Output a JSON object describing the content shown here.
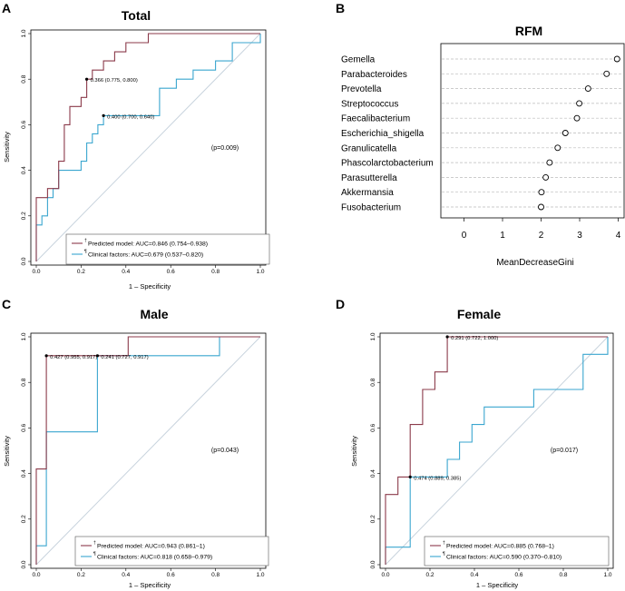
{
  "colors": {
    "predicted": "#8b3a4a",
    "clinical": "#3aa6cf",
    "diagonal": "#c8d3dd",
    "axis": "#000000",
    "grid_dash": "#bbbbbb",
    "legend_border": "#555555"
  },
  "chart_data": [
    {
      "panel": "A",
      "type": "line",
      "title": "Total",
      "xlabel": "1 – Specificity",
      "ylabel": "Sensitivity",
      "xlim": [
        0,
        1
      ],
      "ylim": [
        0,
        1
      ],
      "xticks": [
        "0.0",
        "0.2",
        "0.4",
        "0.6",
        "0.8",
        "1.0"
      ],
      "yticks": [
        "0.0",
        "0.2",
        "0.4",
        "0.6",
        "0.8",
        "1.0"
      ],
      "pvalue": "(p=0.009)",
      "series": [
        {
          "name": "Predicted model",
          "legend_mark": "†",
          "legend_text": "Predicted model: AUC=0.846 (0.754–0.938)",
          "color_key": "predicted",
          "x": [
            0,
            0,
            0.05,
            0.05,
            0.1,
            0.1,
            0.125,
            0.125,
            0.15,
            0.15,
            0.2,
            0.2,
            0.225,
            0.225,
            0.25,
            0.25,
            0.3,
            0.3,
            0.35,
            0.35,
            0.4,
            0.4,
            0.45,
            0.45,
            0.5,
            0.5,
            1.0
          ],
          "y": [
            0,
            0.28,
            0.28,
            0.32,
            0.32,
            0.44,
            0.44,
            0.6,
            0.6,
            0.68,
            0.68,
            0.72,
            0.72,
            0.8,
            0.8,
            0.84,
            0.84,
            0.88,
            0.88,
            0.92,
            0.92,
            0.96,
            0.96,
            0.96,
            0.96,
            1.0,
            1.0
          ],
          "cutoff": {
            "x": 0.225,
            "y": 0.8,
            "label": "0.366 (0.775, 0.800)"
          }
        },
        {
          "name": "Clinical factors",
          "legend_mark": "¶",
          "legend_text": "Clinical factors: AUC=0.679 (0.537–0.820)",
          "color_key": "clinical",
          "x": [
            0,
            0,
            0.025,
            0.025,
            0.05,
            0.05,
            0.075,
            0.075,
            0.1,
            0.1,
            0.2,
            0.2,
            0.225,
            0.225,
            0.25,
            0.25,
            0.275,
            0.275,
            0.3,
            0.3,
            0.55,
            0.55,
            0.625,
            0.625,
            0.7,
            0.7,
            0.8,
            0.8,
            0.875,
            0.875,
            0.95,
            0.95,
            1.0,
            1.0
          ],
          "y": [
            0,
            0.16,
            0.16,
            0.2,
            0.2,
            0.28,
            0.28,
            0.32,
            0.32,
            0.4,
            0.4,
            0.44,
            0.44,
            0.52,
            0.52,
            0.56,
            0.56,
            0.6,
            0.6,
            0.64,
            0.64,
            0.76,
            0.76,
            0.8,
            0.8,
            0.84,
            0.84,
            0.88,
            0.88,
            0.96,
            0.96,
            0.96,
            0.96,
            1.0
          ],
          "cutoff": {
            "x": 0.3,
            "y": 0.64,
            "label": "0.400 (0.700, 0.640)"
          }
        }
      ]
    },
    {
      "panel": "B",
      "type": "scatter",
      "title": "RFM",
      "xlabel": "MeanDecreaseGini",
      "xlim": [
        -0.6,
        4.2
      ],
      "xticks": [
        0,
        1,
        2,
        3,
        4
      ],
      "features": [
        "Gemella",
        "Parabacteroides",
        "Prevotella",
        "Streptococcus",
        "Faecalibacterium",
        "Escherichia_shigella",
        "Granulicatella",
        "Phascolarctobacterium",
        "Parasutterella",
        "Akkermansia",
        "Fusobacterium"
      ],
      "values": [
        3.97,
        3.7,
        3.22,
        2.99,
        2.93,
        2.63,
        2.43,
        2.22,
        2.12,
        2.01,
        2.0
      ]
    },
    {
      "panel": "C",
      "type": "line",
      "title": "Male",
      "xlabel": "1 – Specificity",
      "ylabel": "Sensitivity",
      "xlim": [
        0,
        1
      ],
      "ylim": [
        0,
        1
      ],
      "xticks": [
        "0.0",
        "0.2",
        "0.4",
        "0.6",
        "0.8",
        "1.0"
      ],
      "yticks": [
        "0.0",
        "0.2",
        "0.4",
        "0.6",
        "0.8",
        "1.0"
      ],
      "pvalue": "(p=0.043)",
      "series": [
        {
          "name": "Predicted model",
          "legend_mark": "†",
          "legend_text": "Predicted model: AUC=0.943 (0.861–1)",
          "color_key": "predicted",
          "x": [
            0,
            0,
            0.045,
            0.045,
            0.41,
            0.41,
            1.0
          ],
          "y": [
            0,
            0.42,
            0.42,
            0.917,
            0.917,
            1.0,
            1.0
          ],
          "cutoff": {
            "x": 0.045,
            "y": 0.917,
            "label": "0.427 (0.955, 0.917)"
          }
        },
        {
          "name": "Clinical factors",
          "legend_mark": "¶",
          "legend_text": "Clinical factors: AUC=0.818 (0.658–0.979)",
          "color_key": "clinical",
          "x": [
            0,
            0,
            0.045,
            0.045,
            0.273,
            0.273,
            0.818,
            0.818,
            1.0
          ],
          "y": [
            0,
            0.083,
            0.083,
            0.583,
            0.583,
            0.917,
            0.917,
            1.0,
            1.0
          ],
          "cutoff": {
            "x": 0.273,
            "y": 0.917,
            "label": "0.241 (0.727, 0.917)"
          }
        }
      ]
    },
    {
      "panel": "D",
      "type": "line",
      "title": "Female",
      "xlabel": "1 – Specificity",
      "ylabel": "Sensitivity",
      "xlim": [
        0,
        1
      ],
      "ylim": [
        0,
        1
      ],
      "xticks": [
        "0.0",
        "0.2",
        "0.4",
        "0.6",
        "0.8",
        "1.0"
      ],
      "yticks": [
        "0.0",
        "0.2",
        "0.4",
        "0.6",
        "0.8",
        "1.0"
      ],
      "pvalue": "(p=0.017)",
      "series": [
        {
          "name": "Predicted model",
          "legend_mark": "†",
          "legend_text": "Predicted model: AUC=0.885 (0.768–1)",
          "color_key": "predicted",
          "x": [
            0,
            0,
            0.056,
            0.056,
            0.111,
            0.111,
            0.167,
            0.167,
            0.222,
            0.222,
            0.278,
            0.278,
            1.0
          ],
          "y": [
            0,
            0.308,
            0.308,
            0.385,
            0.385,
            0.615,
            0.615,
            0.769,
            0.769,
            0.846,
            0.846,
            1.0,
            1.0
          ],
          "cutoff": {
            "x": 0.278,
            "y": 1.0,
            "label": "0.291 (0.722, 1.000)"
          }
        },
        {
          "name": "Clinical factors",
          "legend_mark": "¶",
          "legend_text": "Clinical factors: AUC=0.590 (0.370–0.810)",
          "color_key": "clinical",
          "x": [
            0,
            0,
            0.111,
            0.111,
            0.278,
            0.278,
            0.333,
            0.333,
            0.389,
            0.389,
            0.444,
            0.444,
            0.5,
            0.5,
            0.667,
            0.667,
            0.889,
            0.889,
            1.0,
            1.0
          ],
          "y": [
            0,
            0.077,
            0.077,
            0.385,
            0.385,
            0.462,
            0.462,
            0.538,
            0.538,
            0.615,
            0.615,
            0.692,
            0.692,
            0.692,
            0.692,
            0.769,
            0.769,
            0.923,
            0.923,
            1.0
          ],
          "cutoff": {
            "x": 0.111,
            "y": 0.385,
            "label": "0.474 (0.889, 0.385)"
          }
        }
      ]
    }
  ]
}
